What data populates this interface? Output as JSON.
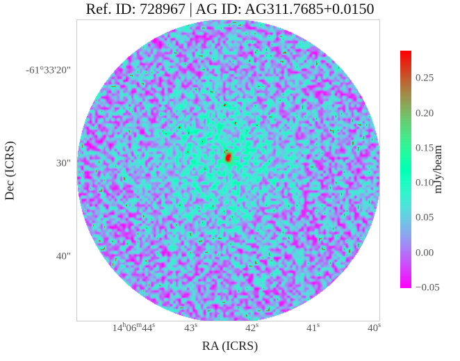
{
  "title": "Ref. ID: 728967 | AG ID: AG311.7685+0.0150",
  "chart_data": {
    "type": "heatmap",
    "title": "Ref. ID: 728967 | AG ID: AG311.7685+0.0150",
    "xlabel": "RA (ICRS)",
    "ylabel": "Dec (ICRS)",
    "x_ticks": [
      {
        "h": "14",
        "hu": "h",
        "m": "06",
        "mu": "m",
        "s": "44",
        "su": "s"
      },
      {
        "s": "43",
        "su": "s"
      },
      {
        "s": "42",
        "su": "s"
      },
      {
        "s": "41",
        "su": "s"
      },
      {
        "s": "40",
        "su": "s"
      }
    ],
    "y_ticks": [
      "-61°33'20\"",
      "30\"",
      "40\""
    ],
    "colorbar": {
      "label": "mJy/beam",
      "colormap": "rainbow",
      "range": [
        -0.05,
        0.29
      ],
      "ticks": [
        "0.25",
        "0.20",
        "0.15",
        "0.10",
        "0.05",
        "0.00",
        "−0.05"
      ],
      "tick_values": [
        0.25,
        0.2,
        0.15,
        0.1,
        0.05,
        0,
        -0.05
      ]
    },
    "footprint": "circular",
    "peak_location": "center",
    "grid": false
  }
}
